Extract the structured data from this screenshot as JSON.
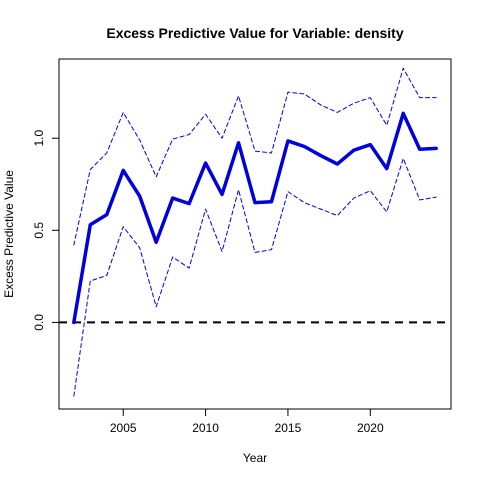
{
  "chart_data": {
    "type": "line",
    "title": "Excess Predictive Value for Variable: density",
    "xlabel": "Year",
    "ylabel": "Excess Predictive Value",
    "xlim": [
      2001.1,
      2024.9
    ],
    "ylim": [
      -0.47,
      1.43
    ],
    "x_ticks": [
      2005,
      2010,
      2015,
      2020
    ],
    "x_tick_labels": [
      "2005",
      "2010",
      "2015",
      "2020"
    ],
    "y_ticks": [
      0.0,
      0.5,
      1.0
    ],
    "y_tick_labels": [
      "0.0",
      "0.5",
      "1.0"
    ],
    "x": [
      2002,
      2003,
      2004,
      2005,
      2006,
      2007,
      2008,
      2009,
      2010,
      2011,
      2012,
      2013,
      2014,
      2015,
      2016,
      2017,
      2018,
      2019,
      2020,
      2021,
      2022,
      2023,
      2024
    ],
    "series": [
      {
        "role": "estimate",
        "color": "#0000dd",
        "style": "solid",
        "values": [
          0.0,
          0.53,
          0.585,
          0.825,
          0.685,
          0.435,
          0.675,
          0.645,
          0.865,
          0.695,
          0.975,
          0.65,
          0.655,
          0.985,
          0.955,
          0.905,
          0.86,
          0.935,
          0.965,
          0.835,
          1.135,
          0.94,
          0.945
        ]
      },
      {
        "role": "upper_bound",
        "color": "#0000dd",
        "style": "dashed",
        "values": [
          0.42,
          0.83,
          0.92,
          1.14,
          0.99,
          0.79,
          0.995,
          1.02,
          1.13,
          1.0,
          1.23,
          0.93,
          0.92,
          1.25,
          1.24,
          1.18,
          1.14,
          1.19,
          1.22,
          1.07,
          1.38,
          1.22,
          1.22
        ]
      },
      {
        "role": "lower_bound",
        "color": "#0000dd",
        "style": "dashed",
        "values": [
          -0.4,
          0.225,
          0.255,
          0.52,
          0.405,
          0.085,
          0.355,
          0.295,
          0.615,
          0.385,
          0.72,
          0.38,
          0.395,
          0.71,
          0.65,
          0.615,
          0.58,
          0.675,
          0.715,
          0.6,
          0.89,
          0.665,
          0.68
        ]
      }
    ],
    "reference_line": {
      "y": 0.0,
      "color": "#000000",
      "style": "dashed"
    },
    "grid": false,
    "legend": "none"
  }
}
